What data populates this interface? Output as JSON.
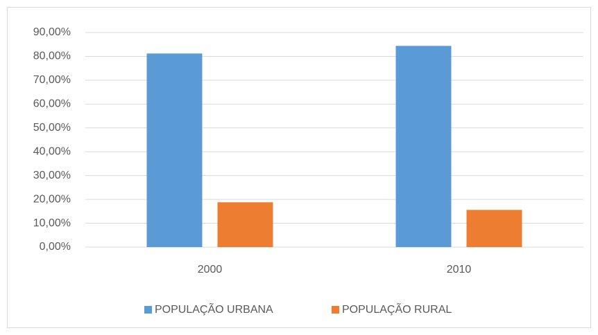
{
  "chart_data": {
    "type": "bar",
    "categories": [
      "2000",
      "2010"
    ],
    "series": [
      {
        "name": "POPULAÇÃO URBANA",
        "color": "#5b9bd5",
        "values": [
          81.2,
          84.4
        ]
      },
      {
        "name": "POPULAÇÃO RURAL",
        "color": "#ed7d31",
        "values": [
          18.8,
          15.6
        ]
      }
    ],
    "ylim": [
      0,
      90
    ],
    "yticks": [
      {
        "value": 0,
        "label": "0,00%"
      },
      {
        "value": 10,
        "label": "10,00%"
      },
      {
        "value": 20,
        "label": "20,00%"
      },
      {
        "value": 30,
        "label": "30,00%"
      },
      {
        "value": 40,
        "label": "40,00%"
      },
      {
        "value": 50,
        "label": "50,00%"
      },
      {
        "value": 60,
        "label": "60,00%"
      },
      {
        "value": 70,
        "label": "70,00%"
      },
      {
        "value": 80,
        "label": "80,00%"
      },
      {
        "value": 90,
        "label": "90,00%"
      }
    ],
    "grid": true,
    "legend": "bottom"
  }
}
